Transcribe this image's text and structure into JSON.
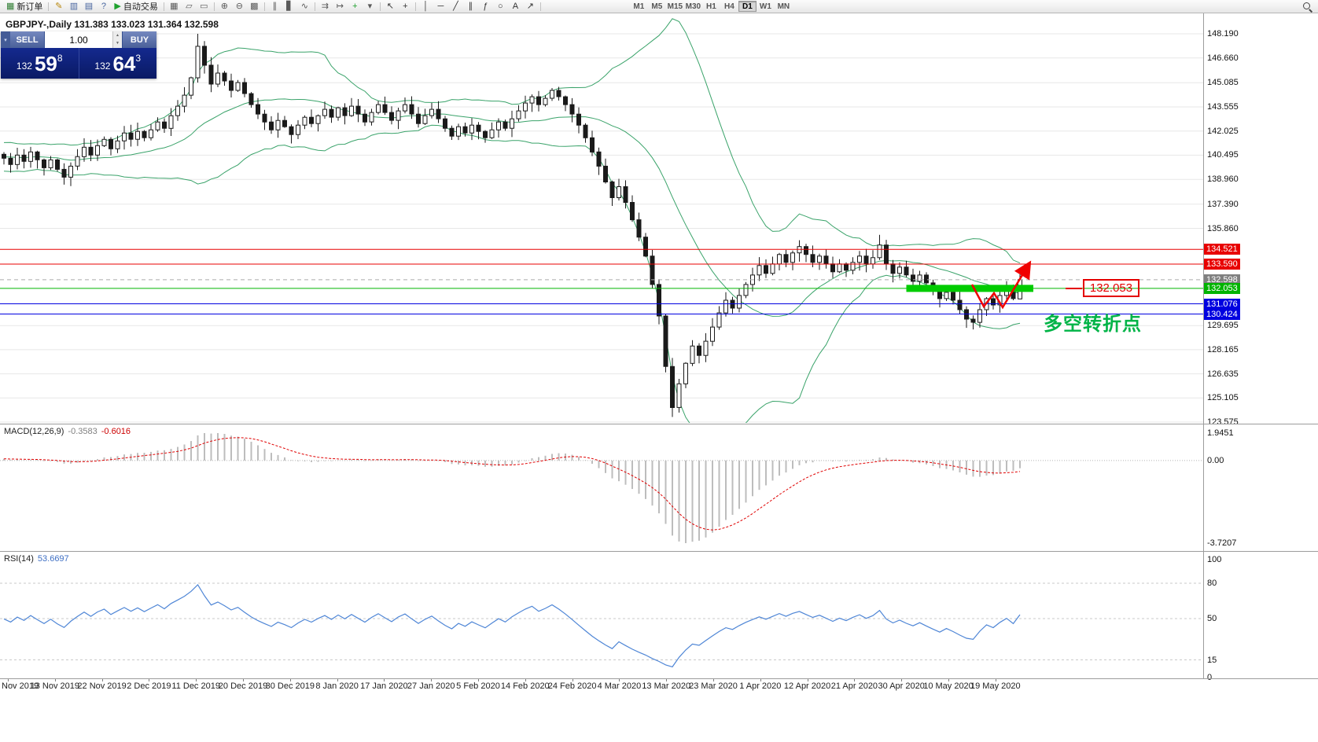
{
  "toolbar": {
    "new_order_label": "新订单",
    "autotrading_label": "自动交易",
    "timeframes": [
      "M1",
      "M5",
      "M15",
      "M30",
      "H1",
      "H4",
      "D1",
      "W1",
      "MN"
    ],
    "active_timeframe": "D1",
    "items": [
      {
        "type": "button",
        "name": "new-order-button",
        "icon": "new-order-icon",
        "glyph": "▦",
        "glyph_color": "#2e7d32",
        "label": "新订单"
      },
      {
        "type": "sep"
      },
      {
        "type": "icon",
        "name": "metaeditor-icon",
        "glyph": "✎",
        "color": "#b8860b"
      },
      {
        "type": "icon",
        "name": "market-watch-icon",
        "glyph": "▥",
        "color": "#46649e"
      },
      {
        "type": "icon",
        "name": "data-window-icon",
        "glyph": "▤",
        "color": "#46649e"
      },
      {
        "type": "icon",
        "name": "help-icon",
        "glyph": "?",
        "color": "#46649e"
      },
      {
        "type": "button",
        "name": "autotrading-button",
        "icon": "autotrading-icon",
        "glyph": "▶",
        "glyph_color": "#1fa12e",
        "label": "自动交易"
      },
      {
        "type": "sep"
      },
      {
        "type": "icon",
        "name": "tile-windows-icon",
        "glyph": "▦",
        "color": "#5a5a5a"
      },
      {
        "type": "icon",
        "name": "cascade-windows-icon",
        "glyph": "▱",
        "color": "#5a5a5a"
      },
      {
        "type": "icon",
        "name": "arrange-windows-icon",
        "glyph": "▭",
        "color": "#5a5a5a"
      },
      {
        "type": "sep"
      },
      {
        "type": "icon",
        "name": "zoom-in-icon",
        "glyph": "⊕",
        "color": "#5a5a5a"
      },
      {
        "type": "icon",
        "name": "zoom-out-icon",
        "glyph": "⊖",
        "color": "#5a5a5a"
      },
      {
        "type": "icon",
        "name": "grid-icon",
        "glyph": "▩",
        "color": "#5a5a5a"
      },
      {
        "type": "sep"
      },
      {
        "type": "icon",
        "name": "bar-chart-icon",
        "glyph": "∥",
        "color": "#5a5a5a"
      },
      {
        "type": "icon",
        "name": "candlestick-chart-icon",
        "glyph": "▋",
        "color": "#5a5a5a"
      },
      {
        "type": "icon",
        "name": "line-chart-icon",
        "glyph": "∿",
        "color": "#5a5a5a"
      },
      {
        "type": "sep"
      },
      {
        "type": "icon",
        "name": "auto-scroll-icon",
        "glyph": "⇉",
        "color": "#5a5a5a"
      },
      {
        "type": "icon",
        "name": "chart-shift-icon",
        "glyph": "↦",
        "color": "#5a5a5a"
      },
      {
        "type": "icon",
        "name": "new-chart-icon",
        "glyph": "+",
        "color": "#1fa12e"
      },
      {
        "type": "icon",
        "name": "profiles-icon",
        "glyph": "▾",
        "color": "#5a5a5a"
      },
      {
        "type": "sep"
      },
      {
        "type": "icon",
        "name": "cursor-icon",
        "glyph": "↖",
        "color": "#333333"
      },
      {
        "type": "icon",
        "name": "crosshair-icon",
        "glyph": "+",
        "color": "#333333"
      },
      {
        "type": "sep"
      },
      {
        "type": "icon",
        "name": "vertical-line-icon",
        "glyph": "│",
        "color": "#333333"
      },
      {
        "type": "icon",
        "name": "horizontal-line-icon",
        "glyph": "─",
        "color": "#333333"
      },
      {
        "type": "icon",
        "name": "trendline-icon",
        "glyph": "╱",
        "color": "#333333"
      },
      {
        "type": "icon",
        "name": "channel-icon",
        "glyph": "∥",
        "color": "#333333"
      },
      {
        "type": "icon",
        "name": "fibonacci-icon",
        "glyph": "ƒ",
        "color": "#333333"
      },
      {
        "type": "icon",
        "name": "shapes-icon",
        "glyph": "○",
        "color": "#333333"
      },
      {
        "type": "icon",
        "name": "text-icon",
        "glyph": "A",
        "color": "#333333"
      },
      {
        "type": "icon",
        "name": "arrows-icon",
        "glyph": "↗",
        "color": "#333333"
      },
      {
        "type": "sep"
      },
      {
        "type": "spacer",
        "width": 110
      },
      {
        "type": "timeframes"
      },
      {
        "type": "flex-spacer"
      },
      {
        "type": "search"
      }
    ]
  },
  "chart": {
    "symbol_ohlc_line": "GBPJPY-,Daily 131.383 133.023 131.364 132.598",
    "one_click": {
      "collapse_icon": "▾",
      "sell_label": "SELL",
      "buy_label": "BUY",
      "volume": "1.00",
      "sell_price": {
        "prefix": "132",
        "big": "59",
        "sup": "8"
      },
      "buy_price": {
        "prefix": "132",
        "big": "64",
        "sup": "3"
      }
    },
    "price_axis_labels": [
      "148.190",
      "146.660",
      "145.085",
      "143.555",
      "142.025",
      "140.495",
      "138.960",
      "137.390",
      "135.860",
      "129.695",
      "128.165",
      "126.635",
      "125.105",
      "123.575"
    ],
    "price_tags": [
      {
        "text": "134.521",
        "color": "#e80000"
      },
      {
        "text": "133.590",
        "color": "#e80000"
      },
      {
        "text": "132.598",
        "color": "#808080"
      },
      {
        "text": "132.053",
        "color": "#00b400"
      },
      {
        "text": "131.076",
        "color": "#0000e0"
      },
      {
        "text": "130.424",
        "color": "#0000e0"
      }
    ],
    "hlines": [
      {
        "price": 134.521,
        "color": "#e80000",
        "style": "solid"
      },
      {
        "price": 133.59,
        "color": "#e80000",
        "style": "solid"
      },
      {
        "price": 132.053,
        "color": "#00b400",
        "style": "solid"
      },
      {
        "price": 131.076,
        "color": "#0000e0",
        "style": "solid"
      },
      {
        "price": 130.424,
        "color": "#0000e0",
        "style": "solid"
      },
      {
        "price": 132.598,
        "color": "#aaaaaa",
        "style": "dash"
      }
    ],
    "green_zone": {
      "from_index": 135,
      "to_index": 154,
      "price": 132.053,
      "thickness": 9,
      "color": "#00cc00"
    },
    "annotations": {
      "box_text": "132.053",
      "turning_point_text": "多空转折点",
      "arrow_points": [
        [
          1236,
          362
        ],
        [
          1251,
          390
        ],
        [
          1264,
          373
        ],
        [
          1275,
          391
        ],
        [
          1306,
          340
        ]
      ],
      "colors": {
        "box": "#e40000",
        "text": "#00b447",
        "arrow": "#f00000"
      }
    },
    "date_labels": [
      "Nov 2019",
      "13 Nov 2019",
      "22 Nov 2019",
      "2 Dec 2019",
      "11 Dec 2019",
      "20 Dec 2019",
      "30 Dec 2019",
      "8 Jan 2020",
      "17 Jan 2020",
      "27 Jan 2020",
      "5 Feb 2020",
      "14 Feb 2020",
      "24 Feb 2020",
      "4 Mar 2020",
      "13 Mar 2020",
      "23 Mar 2020",
      "1 Apr 2020",
      "12 Apr 2020",
      "21 Apr 2020",
      "30 Apr 2020",
      "10 May 2020",
      "19 May 2020"
    ]
  },
  "indicators": {
    "macd": {
      "title": "MACD(12,26,9)",
      "value_main": "-0.3583",
      "value_signal": "-0.6016",
      "axis_top": "1.9451",
      "axis_zero": "0.00",
      "axis_bottom": "-3.7207",
      "params": [
        12,
        26,
        9
      ]
    },
    "rsi": {
      "title": "RSI(14)",
      "value": "53.6697",
      "axis_labels": [
        "100",
        "80",
        "50",
        "15",
        "0"
      ],
      "level_lines": [
        80,
        50,
        15
      ],
      "period": 14
    }
  },
  "chart_data": {
    "type": "candlestick",
    "symbol": "GBPJPY-",
    "timeframe": "Daily",
    "title": "GBPJPY- Daily with Bollinger Bands, MACD(12,26,9), RSI(14)",
    "current_bar": {
      "open": 131.383,
      "high": 133.023,
      "low": 131.364,
      "close": 132.598
    },
    "visible_price_range": [
      123.575,
      148.19
    ],
    "horizontal_levels": [
      134.521,
      133.59,
      132.598,
      132.053,
      131.076,
      130.424
    ],
    "date_range": [
      "Nov 2019",
      "19 May 2020"
    ],
    "closes": [
      140.3,
      139.9,
      140.5,
      140.1,
      140.7,
      140.2,
      139.7,
      140.2,
      139.6,
      139.1,
      139.8,
      140.4,
      141.0,
      140.5,
      141.1,
      141.5,
      140.9,
      141.4,
      141.9,
      141.5,
      142.0,
      141.6,
      142.1,
      142.6,
      142.2,
      143.0,
      143.6,
      144.3,
      145.4,
      147.4,
      146.2,
      145.0,
      145.7,
      145.2,
      144.6,
      145.1,
      144.4,
      143.7,
      143.1,
      142.6,
      142.1,
      142.7,
      142.3,
      141.8,
      142.4,
      142.9,
      142.5,
      143.0,
      143.4,
      142.9,
      143.5,
      143.0,
      143.6,
      143.1,
      142.6,
      143.2,
      143.7,
      143.2,
      142.7,
      143.3,
      143.7,
      143.1,
      142.5,
      143.0,
      143.4,
      142.8,
      142.2,
      141.7,
      142.3,
      141.9,
      142.4,
      142.0,
      141.6,
      142.1,
      142.6,
      142.2,
      142.8,
      143.3,
      143.8,
      144.2,
      143.7,
      144.1,
      144.6,
      144.2,
      143.7,
      143.1,
      142.4,
      141.6,
      140.7,
      139.8,
      138.8,
      137.8,
      138.5,
      137.5,
      136.4,
      135.3,
      134.1,
      132.3,
      130.3,
      127.1,
      124.5,
      126.0,
      127.3,
      128.4,
      127.8,
      128.7,
      129.6,
      130.5,
      131.3,
      130.8,
      131.6,
      132.3,
      132.9,
      133.5,
      133.0,
      133.6,
      134.2,
      133.7,
      134.3,
      134.7,
      134.2,
      133.7,
      134.1,
      133.6,
      133.1,
      133.6,
      133.2,
      133.7,
      134.1,
      133.6,
      134.0,
      134.8,
      133.6,
      133.0,
      133.4,
      132.9,
      132.5,
      132.9,
      132.4,
      131.9,
      131.4,
      131.8,
      131.3,
      130.7,
      130.1,
      129.9,
      130.7,
      131.4,
      131.0,
      131.6,
      132.1,
      131.4,
      132.598
    ],
    "overrides": {
      "29": {
        "h": 148.19,
        "l": 145.1
      },
      "100": {
        "l": 123.9
      },
      "131": {
        "h": 135.45
      },
      "145": {
        "l": 129.45
      },
      "152": {
        "o": 131.383,
        "h": 133.023,
        "l": 131.364,
        "c": 132.598
      }
    },
    "indicators": {
      "bollinger": {
        "period": 20,
        "deviation": 2,
        "color": "#3aa36a"
      },
      "macd": [
        12,
        26,
        9
      ],
      "rsi": 14
    }
  }
}
